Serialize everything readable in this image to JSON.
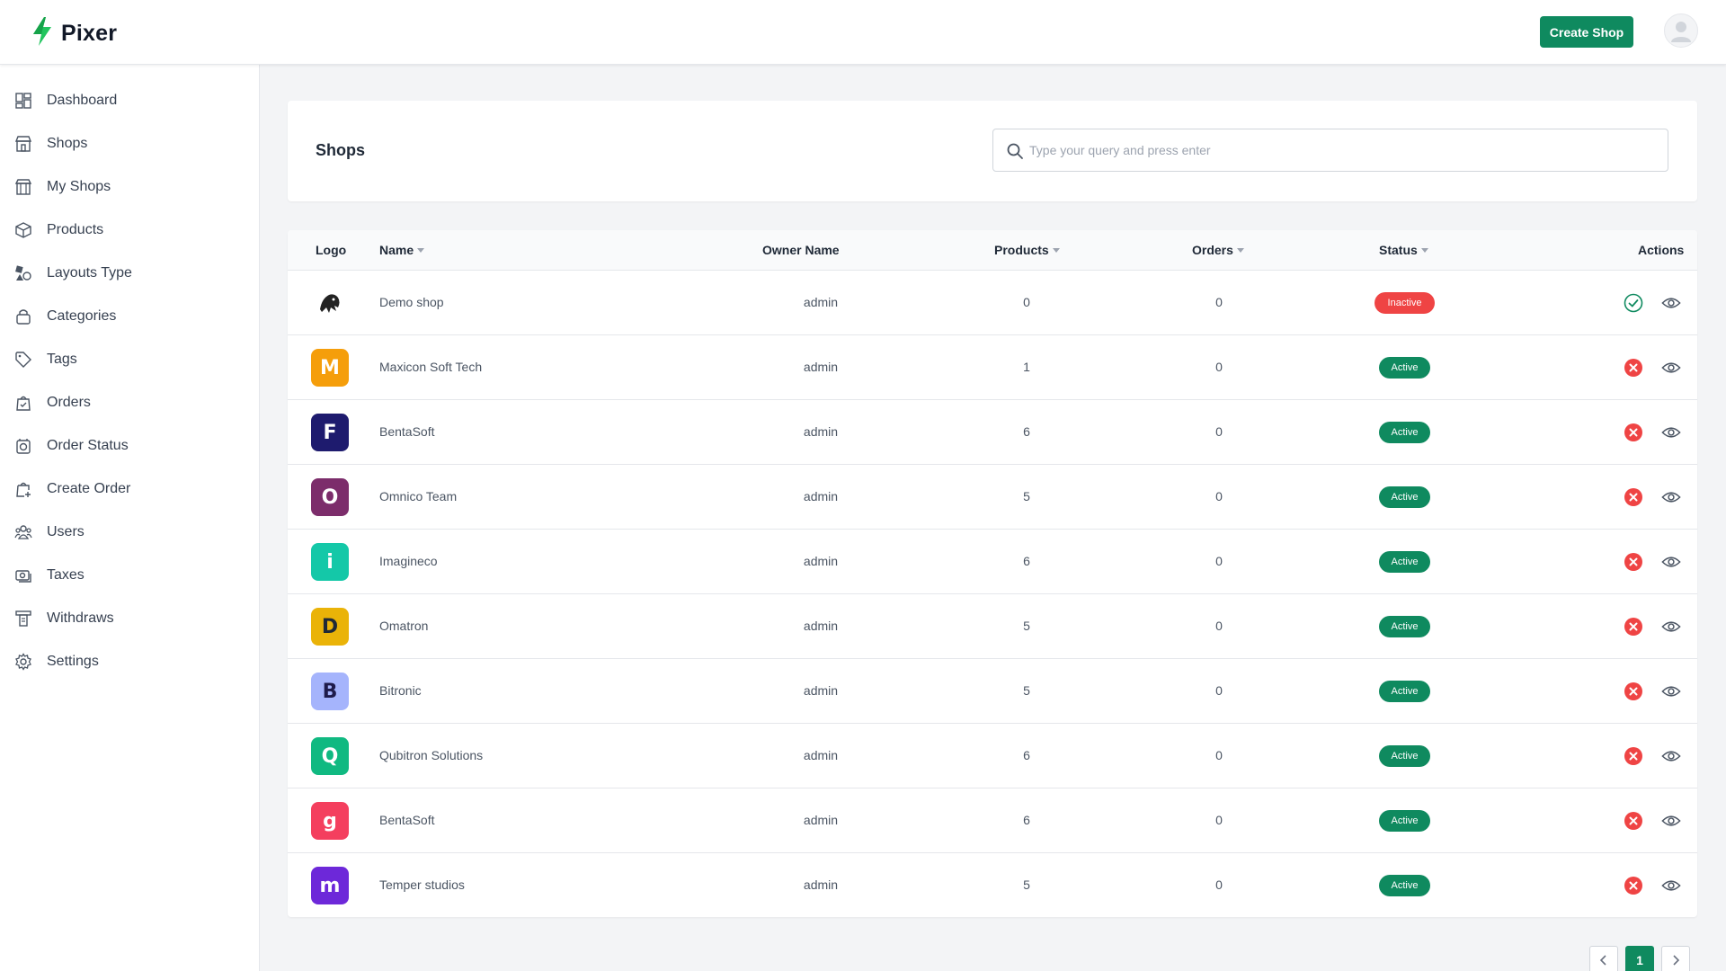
{
  "app": {
    "name": "Pixer"
  },
  "topbar": {
    "create_shop_label": "Create Shop"
  },
  "sidebar": {
    "items": [
      {
        "label": "Dashboard",
        "icon": "dashboard-icon"
      },
      {
        "label": "Shops",
        "icon": "shop-icon"
      },
      {
        "label": "My Shops",
        "icon": "my-shops-icon"
      },
      {
        "label": "Products",
        "icon": "box-icon"
      },
      {
        "label": "Layouts Type",
        "icon": "layouts-icon"
      },
      {
        "label": "Categories",
        "icon": "categories-icon"
      },
      {
        "label": "Tags",
        "icon": "tag-icon"
      },
      {
        "label": "Orders",
        "icon": "orders-icon"
      },
      {
        "label": "Order Status",
        "icon": "order-status-icon"
      },
      {
        "label": "Create Order",
        "icon": "create-order-icon"
      },
      {
        "label": "Users",
        "icon": "users-icon"
      },
      {
        "label": "Taxes",
        "icon": "taxes-icon"
      },
      {
        "label": "Withdraws",
        "icon": "withdraws-icon"
      },
      {
        "label": "Settings",
        "icon": "settings-icon"
      }
    ]
  },
  "header": {
    "title": "Shops",
    "search_placeholder": "Type your query and press enter"
  },
  "table": {
    "columns": {
      "logo": "Logo",
      "name": "Name",
      "owner": "Owner Name",
      "products": "Products",
      "orders": "Orders",
      "status": "Status",
      "actions": "Actions"
    },
    "rows": [
      {
        "logo_glyph": "",
        "logo_color": "#ffffff",
        "name": "Demo shop",
        "owner": "admin",
        "products": "0",
        "orders": "0",
        "status": "Inactive"
      },
      {
        "logo_glyph": "M",
        "logo_color": "#f59e0b",
        "name": "Maxicon Soft Tech",
        "owner": "admin",
        "products": "1",
        "orders": "0",
        "status": "Active"
      },
      {
        "logo_glyph": "F",
        "logo_color": "#1e1b6e",
        "name": "BentaSoft",
        "owner": "admin",
        "products": "6",
        "orders": "0",
        "status": "Active"
      },
      {
        "logo_glyph": "O",
        "logo_color": "#7c2d6b",
        "name": "Omnico Team",
        "owner": "admin",
        "products": "5",
        "orders": "0",
        "status": "Active"
      },
      {
        "logo_glyph": "i",
        "logo_color": "#14c8a8",
        "name": "Imagineco",
        "owner": "admin",
        "products": "6",
        "orders": "0",
        "status": "Active"
      },
      {
        "logo_glyph": "D",
        "logo_color": "#eab308",
        "name": "Omatron",
        "owner": "admin",
        "products": "5",
        "orders": "0",
        "status": "Active"
      },
      {
        "logo_glyph": "B",
        "logo_color": "#a5b4fc",
        "name": "Bitronic",
        "owner": "admin",
        "products": "5",
        "orders": "0",
        "status": "Active"
      },
      {
        "logo_glyph": "Q",
        "logo_color": "#10b981",
        "name": "Qubitron Solutions",
        "owner": "admin",
        "products": "6",
        "orders": "0",
        "status": "Active"
      },
      {
        "logo_glyph": "g",
        "logo_color": "#f43f5e",
        "name": "BentaSoft",
        "owner": "admin",
        "products": "6",
        "orders": "0",
        "status": "Active"
      },
      {
        "logo_glyph": "m",
        "logo_color": "#6d28d9",
        "name": "Temper studios",
        "owner": "admin",
        "products": "5",
        "orders": "0",
        "status": "Active"
      }
    ]
  },
  "pagination": {
    "current_page": "1"
  },
  "colors": {
    "accent": "#0f8a5f",
    "danger": "#ef4444"
  }
}
